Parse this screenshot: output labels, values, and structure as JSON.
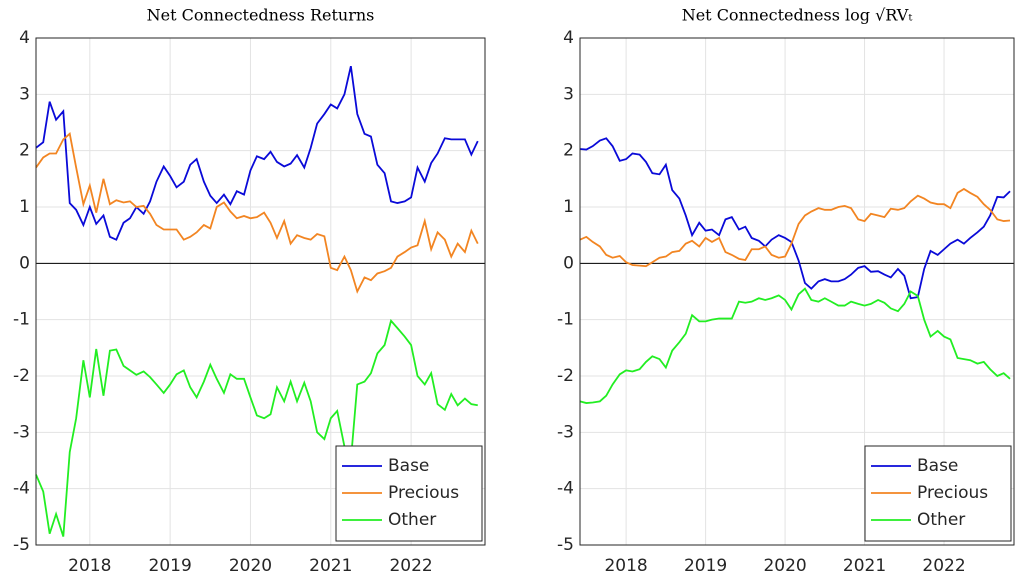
{
  "chart_data": [
    {
      "type": "line",
      "title": "Net Connectedness Returns",
      "x": [
        2017.33,
        2017.42,
        2017.5,
        2017.58,
        2017.67,
        2017.75,
        2017.83,
        2017.92,
        2018,
        2018.08,
        2018.17,
        2018.25,
        2018.33,
        2018.42,
        2018.5,
        2018.58,
        2018.67,
        2018.75,
        2018.83,
        2018.92,
        2019,
        2019.08,
        2019.17,
        2019.25,
        2019.33,
        2019.42,
        2019.5,
        2019.58,
        2019.67,
        2019.75,
        2019.83,
        2019.92,
        2020,
        2020.08,
        2020.17,
        2020.25,
        2020.33,
        2020.42,
        2020.5,
        2020.58,
        2020.67,
        2020.75,
        2020.83,
        2020.92,
        2021,
        2021.08,
        2021.17,
        2021.25,
        2021.33,
        2021.42,
        2021.5,
        2021.58,
        2021.67,
        2021.75,
        2021.83,
        2021.92,
        2022,
        2022.08,
        2022.17,
        2022.25,
        2022.33,
        2022.42,
        2022.5,
        2022.58,
        2022.67,
        2022.75,
        2022.83
      ],
      "series": [
        {
          "name": "Base",
          "color": "#0a0ad8",
          "values": [
            2.05,
            2.15,
            2.87,
            2.55,
            2.7,
            1.07,
            0.95,
            0.68,
            1.0,
            0.7,
            0.85,
            0.47,
            0.42,
            0.72,
            0.8,
            1.0,
            0.88,
            1.1,
            1.45,
            1.72,
            1.55,
            1.35,
            1.45,
            1.75,
            1.85,
            1.45,
            1.2,
            1.07,
            1.22,
            1.05,
            1.28,
            1.22,
            1.65,
            1.9,
            1.85,
            1.98,
            1.8,
            1.72,
            1.77,
            1.92,
            1.7,
            2.05,
            2.48,
            2.65,
            2.82,
            2.75,
            3.0,
            3.5,
            2.65,
            2.3,
            2.25,
            1.75,
            1.6,
            1.1,
            1.07,
            1.1,
            1.17,
            1.7,
            1.45,
            1.78,
            1.95,
            2.22,
            2.2,
            2.2,
            2.2,
            1.93,
            2.17
          ]
        },
        {
          "name": "Precious",
          "color": "#f28522",
          "values": [
            1.7,
            1.88,
            1.95,
            1.95,
            2.2,
            2.3,
            1.7,
            1.05,
            1.38,
            0.9,
            1.5,
            1.05,
            1.12,
            1.08,
            1.1,
            1.0,
            1.02,
            0.88,
            0.68,
            0.6,
            0.6,
            0.6,
            0.42,
            0.47,
            0.55,
            0.68,
            0.62,
            1.0,
            1.08,
            0.92,
            0.8,
            0.84,
            0.8,
            0.82,
            0.9,
            0.72,
            0.45,
            0.75,
            0.35,
            0.5,
            0.45,
            0.42,
            0.52,
            0.48,
            -0.08,
            -0.12,
            0.12,
            -0.12,
            -0.5,
            -0.25,
            -0.3,
            -0.18,
            -0.14,
            -0.08,
            0.12,
            0.2,
            0.28,
            0.32,
            0.75,
            0.25,
            0.55,
            0.42,
            0.12,
            0.35,
            0.2,
            0.58,
            0.35
          ]
        },
        {
          "name": "Other",
          "color": "#22ee22",
          "values": [
            -3.75,
            -4.05,
            -4.8,
            -4.45,
            -4.85,
            -3.35,
            -2.75,
            -1.72,
            -2.38,
            -1.52,
            -2.35,
            -1.55,
            -1.53,
            -1.82,
            -1.9,
            -1.98,
            -1.92,
            -2.02,
            -2.15,
            -2.3,
            -2.15,
            -1.97,
            -1.9,
            -2.2,
            -2.38,
            -2.1,
            -1.8,
            -2.05,
            -2.3,
            -1.97,
            -2.05,
            -2.05,
            -2.38,
            -2.7,
            -2.75,
            -2.68,
            -2.2,
            -2.45,
            -2.1,
            -2.45,
            -2.12,
            -2.45,
            -3.0,
            -3.12,
            -2.75,
            -2.62,
            -3.25,
            -3.5,
            -2.15,
            -2.1,
            -1.95,
            -1.6,
            -1.45,
            -1.02,
            -1.15,
            -1.3,
            -1.45,
            -2.0,
            -2.15,
            -1.95,
            -2.5,
            -2.6,
            -2.32,
            -2.52,
            -2.4,
            -2.5,
            -2.52
          ]
        }
      ],
      "xlim": [
        2017.33,
        2022.92
      ],
      "xticks": [
        2018,
        2019,
        2020,
        2021,
        2022
      ],
      "ylim": [
        -5,
        4
      ],
      "yticks": [
        -5,
        -4,
        -3,
        -2,
        -1,
        0,
        1,
        2,
        3,
        4
      ],
      "grid": true,
      "legend": "lower right"
    },
    {
      "type": "line",
      "title": "Net Connectedness log √RVₜ",
      "x": [
        2017.42,
        2017.5,
        2017.58,
        2017.67,
        2017.75,
        2017.83,
        2017.92,
        2018,
        2018.08,
        2018.17,
        2018.25,
        2018.33,
        2018.42,
        2018.5,
        2018.58,
        2018.67,
        2018.75,
        2018.83,
        2018.92,
        2019,
        2019.08,
        2019.17,
        2019.25,
        2019.33,
        2019.42,
        2019.5,
        2019.58,
        2019.67,
        2019.75,
        2019.83,
        2019.92,
        2020,
        2020.08,
        2020.17,
        2020.25,
        2020.33,
        2020.42,
        2020.5,
        2020.58,
        2020.67,
        2020.75,
        2020.83,
        2020.92,
        2021,
        2021.08,
        2021.17,
        2021.25,
        2021.33,
        2021.42,
        2021.5,
        2021.58,
        2021.67,
        2021.75,
        2021.83,
        2021.92,
        2022,
        2022.08,
        2022.17,
        2022.25,
        2022.33,
        2022.42,
        2022.5,
        2022.58,
        2022.67,
        2022.75,
        2022.83
      ],
      "series": [
        {
          "name": "Base",
          "color": "#0a0ad8",
          "values": [
            2.03,
            2.02,
            2.08,
            2.18,
            2.22,
            2.08,
            1.82,
            1.85,
            1.95,
            1.93,
            1.8,
            1.6,
            1.58,
            1.75,
            1.3,
            1.15,
            0.85,
            0.5,
            0.72,
            0.58,
            0.6,
            0.5,
            0.78,
            0.82,
            0.6,
            0.65,
            0.45,
            0.4,
            0.3,
            0.42,
            0.5,
            0.45,
            0.38,
            0.05,
            -0.35,
            -0.45,
            -0.32,
            -0.28,
            -0.32,
            -0.32,
            -0.28,
            -0.2,
            -0.08,
            -0.05,
            -0.15,
            -0.14,
            -0.2,
            -0.25,
            -0.1,
            -0.22,
            -0.62,
            -0.6,
            -0.1,
            0.22,
            0.15,
            0.25,
            0.35,
            0.42,
            0.35,
            0.45,
            0.55,
            0.65,
            0.85,
            1.18,
            1.17,
            1.28
          ]
        },
        {
          "name": "Precious",
          "color": "#f28522",
          "values": [
            0.42,
            0.47,
            0.38,
            0.3,
            0.15,
            0.1,
            0.13,
            0.02,
            -0.03,
            -0.04,
            -0.05,
            0.02,
            0.1,
            0.12,
            0.2,
            0.22,
            0.35,
            0.4,
            0.3,
            0.45,
            0.38,
            0.45,
            0.2,
            0.15,
            0.08,
            0.06,
            0.25,
            0.25,
            0.3,
            0.15,
            0.1,
            0.12,
            0.35,
            0.7,
            0.85,
            0.92,
            0.98,
            0.95,
            0.95,
            1.0,
            1.02,
            0.98,
            0.78,
            0.75,
            0.88,
            0.85,
            0.82,
            0.97,
            0.95,
            0.98,
            1.1,
            1.2,
            1.15,
            1.08,
            1.05,
            1.05,
            0.98,
            1.25,
            1.32,
            1.25,
            1.18,
            1.05,
            0.95,
            0.78,
            0.75,
            0.76
          ]
        },
        {
          "name": "Other",
          "color": "#22ee22",
          "values": [
            -2.45,
            -2.48,
            -2.47,
            -2.45,
            -2.35,
            -2.15,
            -1.97,
            -1.9,
            -1.92,
            -1.88,
            -1.75,
            -1.65,
            -1.7,
            -1.85,
            -1.55,
            -1.4,
            -1.25,
            -0.92,
            -1.03,
            -1.03,
            -1.0,
            -0.98,
            -0.98,
            -0.98,
            -0.68,
            -0.7,
            -0.68,
            -0.62,
            -0.65,
            -0.62,
            -0.57,
            -0.65,
            -0.82,
            -0.55,
            -0.45,
            -0.65,
            -0.68,
            -0.62,
            -0.68,
            -0.75,
            -0.75,
            -0.68,
            -0.72,
            -0.75,
            -0.72,
            -0.65,
            -0.7,
            -0.8,
            -0.85,
            -0.72,
            -0.5,
            -0.58,
            -1.0,
            -1.3,
            -1.2,
            -1.3,
            -1.35,
            -1.68,
            -1.7,
            -1.72,
            -1.78,
            -1.75,
            -1.88,
            -2.0,
            -1.95,
            -2.05
          ]
        }
      ],
      "xlim": [
        2017.42,
        2022.88
      ],
      "xticks": [
        2018,
        2019,
        2020,
        2021,
        2022
      ],
      "ylim": [
        -5,
        4
      ],
      "yticks": [
        -5,
        -4,
        -3,
        -2,
        -1,
        0,
        1,
        2,
        3,
        4
      ],
      "grid": true,
      "legend": "lower right"
    }
  ]
}
